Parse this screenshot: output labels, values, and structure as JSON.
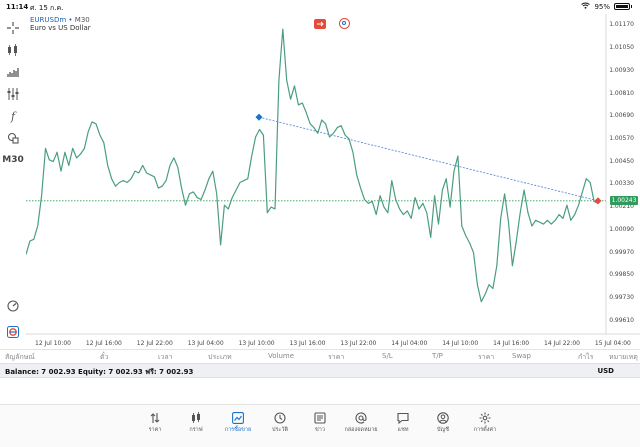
{
  "status_bar": {
    "time": "11:14",
    "date": "ศ. 15 ก.ค.",
    "battery": "95%"
  },
  "chart": {
    "symbol": "EURUSDm",
    "separator": "•",
    "timeframe": "M30",
    "description": "Euro vs US Dollar",
    "current_price": "1.00243",
    "colors": {
      "line": "#4a9e7e",
      "accent": "#1a73c9",
      "bid_line": "#2e9d5c",
      "trend": "#4a7fd0"
    }
  },
  "chart_data": {
    "type": "line",
    "y_ticks": [
      "1.01170",
      "1.01050",
      "1.00930",
      "1.00810",
      "1.00690",
      "1.00570",
      "1.00450",
      "1.00330",
      "1.00210",
      "1.00090",
      "0.99970",
      "0.99850",
      "0.99730",
      "0.99610"
    ],
    "x_ticks": [
      "12 Jul 10:00",
      "12 Jul 16:00",
      "12 Jul 22:00",
      "13 Jul 04:00",
      "13 Jul 10:00",
      "13 Jul 16:00",
      "13 Jul 22:00",
      "14 Jul 04:00",
      "14 Jul 10:00",
      "14 Jul 16:00",
      "14 Jul 22:00",
      "15 Jul 04:00"
    ],
    "ylim": [
      0.9955,
      1.0123
    ],
    "values": [
      0.9996,
      1.0003,
      1.0004,
      1.0011,
      1.0027,
      1.0052,
      1.0046,
      1.0045,
      1.005,
      1.004,
      1.005,
      1.0043,
      1.0052,
      1.0047,
      1.0049,
      1.0052,
      1.0061,
      1.0066,
      1.0065,
      1.0059,
      1.0055,
      1.0043,
      1.0036,
      1.0032,
      1.0034,
      1.0035,
      1.0034,
      1.0036,
      1.004,
      1.0039,
      1.0043,
      1.0039,
      1.0038,
      1.0037,
      1.0031,
      1.0032,
      1.0035,
      1.0043,
      1.0047,
      1.0042,
      1.0031,
      1.0022,
      1.0028,
      1.0029,
      1.0026,
      1.0025,
      1.003,
      1.0036,
      1.004,
      1.0028,
      1.0001,
      1.0022,
      1.002,
      1.0026,
      1.003,
      1.0034,
      1.0035,
      1.0036,
      1.0048,
      1.0058,
      1.0062,
      1.0059,
      1.0018,
      1.0021,
      1.002,
      1.0088,
      1.0115,
      1.0088,
      1.0078,
      1.0085,
      1.0075,
      1.0076,
      1.0071,
      1.0065,
      1.0063,
      1.006,
      1.0067,
      1.0065,
      1.0058,
      1.006,
      1.0063,
      1.0064,
      1.0059,
      1.0057,
      1.005,
      1.0038,
      1.0031,
      1.0025,
      1.0023,
      1.0024,
      1.0017,
      1.0027,
      1.0021,
      1.0018,
      1.0035,
      1.0025,
      1.002,
      1.0017,
      1.0019,
      1.0015,
      1.0026,
      1.002,
      1.0023,
      1.0018,
      1.0005,
      1.0027,
      1.0012,
      1.003,
      1.0036,
      1.0021,
      1.004,
      1.0048,
      1.0011,
      1.0006,
      1.0002,
      0.9997,
      0.998,
      0.9971,
      0.9975,
      0.998,
      0.9978,
      0.999,
      1.0015,
      1.0028,
      1.0013,
      0.999,
      1.0003,
      1.0018,
      1.003,
      1.0018,
      1.0011,
      1.0014,
      1.0013,
      1.0012,
      1.0014,
      1.0012,
      1.0014,
      1.0017,
      1.0015,
      1.0022,
      1.0014,
      1.0017,
      1.0022,
      1.0029,
      1.0036,
      1.0034,
      1.0024,
      1.0023
    ],
    "trendline": {
      "from": 1.00685,
      "to": 1.00243
    },
    "grid": false
  },
  "toolbar": {
    "timeframe_label": "M30"
  },
  "columns": [
    "สัญลักษณ์",
    "ตั๋ว",
    "เวลา",
    "ประเภท",
    "Volume",
    "ราคา",
    "S/L",
    "T/P",
    "ราคา",
    "Swap",
    "กำไร",
    "หมายเหตุ"
  ],
  "balance": {
    "text": "Balance: 7 002.93 Equity: 7 002.93 ฟรี: 7 002.93",
    "currency": "USD"
  },
  "nav": [
    {
      "label": "ราคา",
      "icon": "arrows-updown-icon"
    },
    {
      "label": "กราฟ",
      "icon": "candles-icon"
    },
    {
      "label": "การซื้อขาย",
      "icon": "trade-chart-icon",
      "active": true
    },
    {
      "label": "ประวัติ",
      "icon": "history-icon"
    },
    {
      "label": "ข่าว",
      "icon": "news-icon"
    },
    {
      "label": "กล่องจดหมาย",
      "icon": "mail-at-icon"
    },
    {
      "label": "แชท",
      "icon": "chat-icon"
    },
    {
      "label": "บัญชี",
      "icon": "account-icon"
    },
    {
      "label": "การตั้งค่า",
      "icon": "settings-icon"
    }
  ]
}
